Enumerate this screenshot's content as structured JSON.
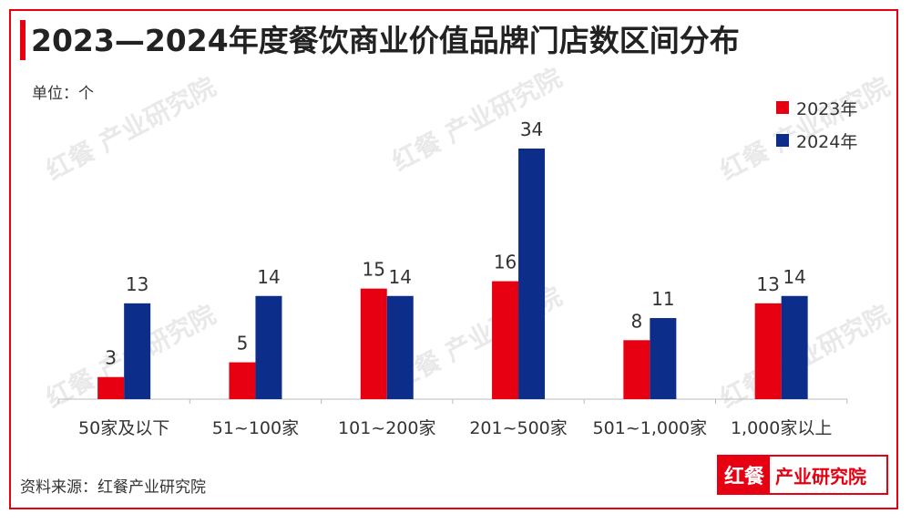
{
  "title": "2023—2024年度餐饮商业价值品牌门店数区间分布",
  "unit": "单位：个",
  "source": "资料来源：红餐产业研究院",
  "logo": {
    "mark": "红餐",
    "text": "产业研究院"
  },
  "watermark": "红餐 产业研究院",
  "colors": {
    "accent": "#e60012",
    "series_2023": "#e60012",
    "series_2024": "#0c2d8a"
  },
  "chart_data": {
    "type": "bar",
    "categories": [
      "50家及以下",
      "51~100家",
      "101~200家",
      "201~500家",
      "501~1,000家",
      "1,000家以上"
    ],
    "series": [
      {
        "name": "2023年",
        "values": [
          3,
          5,
          15,
          16,
          8,
          13
        ]
      },
      {
        "name": "2024年",
        "values": [
          13,
          14,
          14,
          34,
          11,
          14
        ]
      }
    ],
    "ylim": [
      0,
      34
    ],
    "grid": false,
    "legend": "top-right",
    "xlabel": "",
    "ylabel": ""
  }
}
